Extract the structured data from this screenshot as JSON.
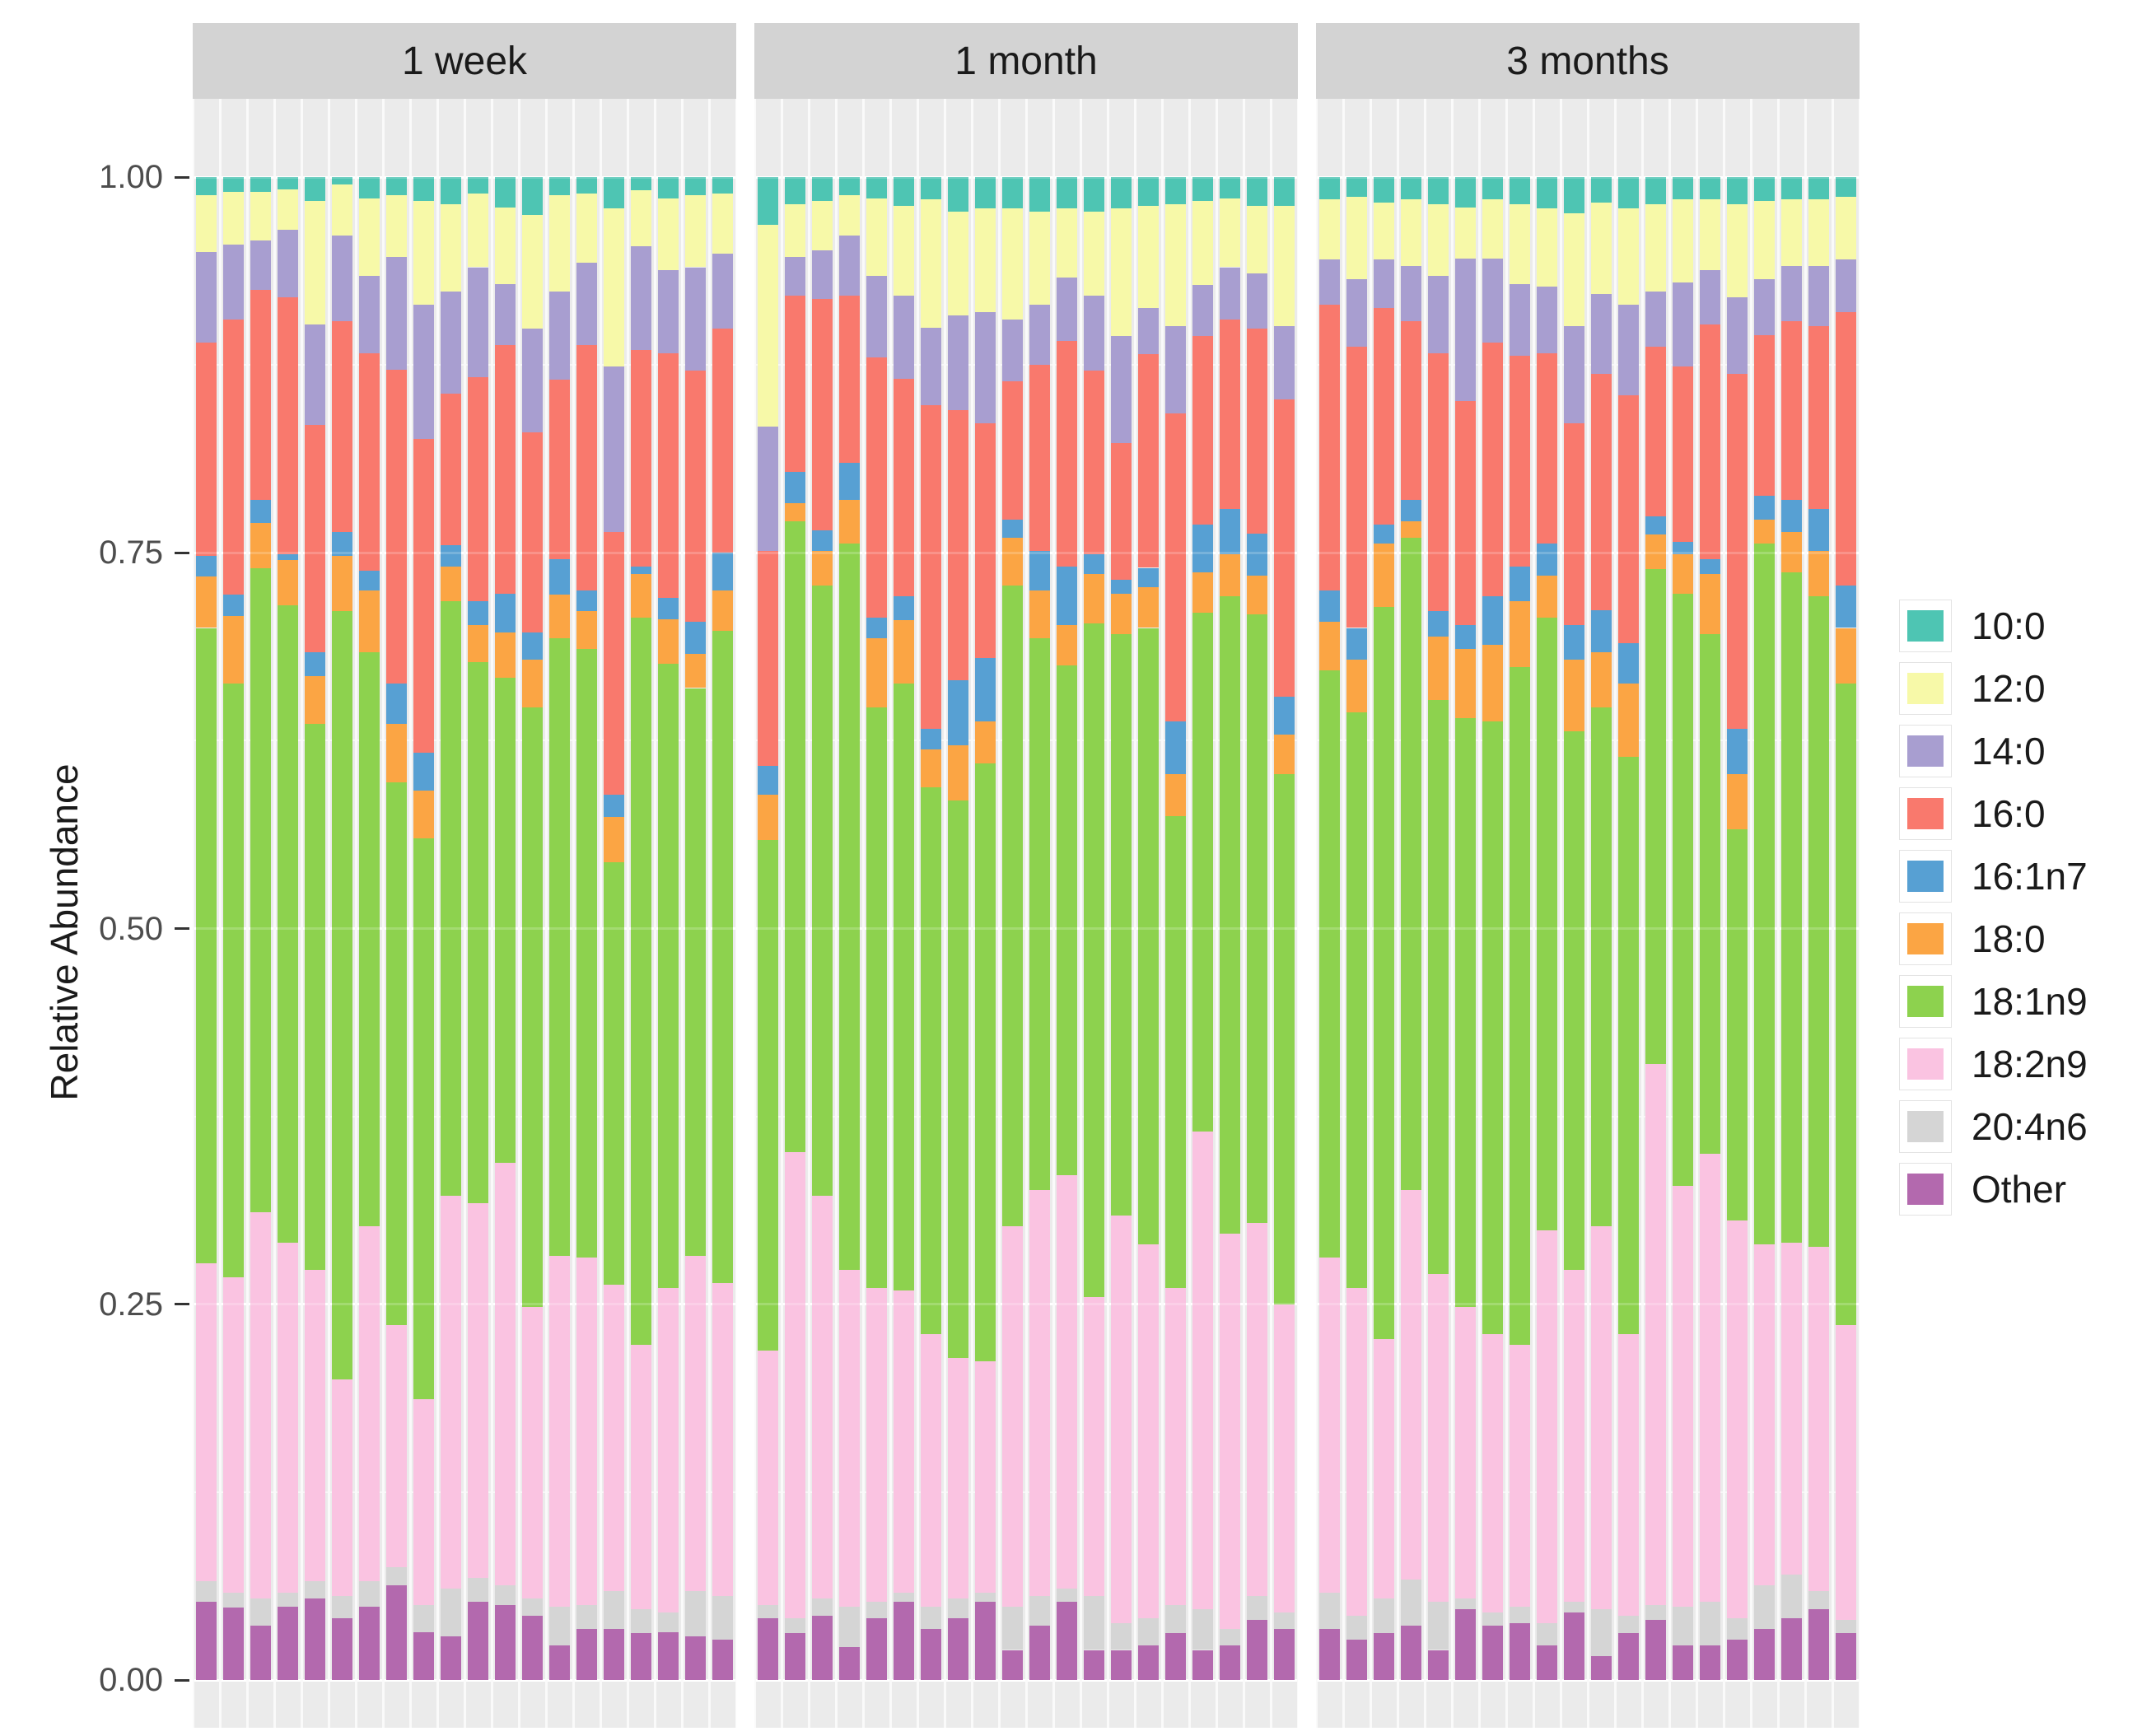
{
  "chart_data": {
    "type": "bar",
    "stacked": true,
    "normalized": true,
    "title": "",
    "ylabel": "Relative Abundance",
    "ylim": [
      0,
      1
    ],
    "grid": true,
    "legend_position": "right",
    "yticks": [
      {
        "label": "1.00",
        "value": 1.0
      },
      {
        "label": "0.75",
        "value": 0.75
      },
      {
        "label": "0.50",
        "value": 0.5
      },
      {
        "label": "0.25",
        "value": 0.25
      },
      {
        "label": "0.00",
        "value": 0.0
      }
    ],
    "series_bottom_to_top": [
      "Other",
      "20:4n6",
      "18:2n9",
      "18:1n9",
      "18:0",
      "16:1n7",
      "16:0",
      "14:0",
      "12:0",
      "10:0"
    ],
    "legend": [
      {
        "label": "10:0",
        "color": "#4EC5B3"
      },
      {
        "label": "12:0",
        "color": "#F7F9A8"
      },
      {
        "label": "14:0",
        "color": "#A89ED0"
      },
      {
        "label": "16:0",
        "color": "#F9796D"
      },
      {
        "label": "16:1n7",
        "color": "#57A0D3"
      },
      {
        "label": "18:0",
        "color": "#FBA544"
      },
      {
        "label": "18:1n9",
        "color": "#8DD24E"
      },
      {
        "label": "18:2n9",
        "color": "#FAC3E1"
      },
      {
        "label": "20:4n6",
        "color": "#D5D5D5"
      },
      {
        "label": "Other",
        "color": "#B369AE"
      }
    ],
    "panel_background": "#EBEBEB",
    "strip_background": "#D3D3D3",
    "facets": [
      {
        "label": "1 week",
        "bars": [
          [
            0.052,
            0.014,
            0.211,
            0.423,
            0.034,
            0.014,
            0.142,
            0.06,
            0.038,
            0.012
          ],
          [
            0.048,
            0.01,
            0.21,
            0.395,
            0.045,
            0.014,
            0.183,
            0.05,
            0.035,
            0.01
          ],
          [
            0.036,
            0.018,
            0.257,
            0.429,
            0.03,
            0.015,
            0.14,
            0.033,
            0.032,
            0.01
          ],
          [
            0.049,
            0.009,
            0.233,
            0.424,
            0.03,
            0.004,
            0.171,
            0.045,
            0.027,
            0.008
          ],
          [
            0.054,
            0.012,
            0.207,
            0.363,
            0.032,
            0.016,
            0.151,
            0.067,
            0.082,
            0.016
          ],
          [
            0.041,
            0.015,
            0.144,
            0.511,
            0.037,
            0.016,
            0.14,
            0.057,
            0.034,
            0.005
          ],
          [
            0.049,
            0.017,
            0.236,
            0.382,
            0.041,
            0.013,
            0.145,
            0.051,
            0.052,
            0.014
          ],
          [
            0.063,
            0.012,
            0.161,
            0.361,
            0.039,
            0.027,
            0.209,
            0.075,
            0.041,
            0.012
          ],
          [
            0.032,
            0.018,
            0.137,
            0.373,
            0.032,
            0.025,
            0.209,
            0.089,
            0.069,
            0.016
          ],
          [
            0.029,
            0.032,
            0.261,
            0.396,
            0.023,
            0.014,
            0.101,
            0.068,
            0.058,
            0.018
          ],
          [
            0.052,
            0.016,
            0.249,
            0.36,
            0.025,
            0.016,
            0.149,
            0.073,
            0.049,
            0.011
          ],
          [
            0.05,
            0.013,
            0.281,
            0.323,
            0.03,
            0.026,
            0.165,
            0.041,
            0.051,
            0.02
          ],
          [
            0.043,
            0.011,
            0.194,
            0.399,
            0.032,
            0.018,
            0.133,
            0.069,
            0.076,
            0.025
          ],
          [
            0.023,
            0.026,
            0.233,
            0.411,
            0.029,
            0.024,
            0.119,
            0.059,
            0.064,
            0.012
          ],
          [
            0.034,
            0.016,
            0.231,
            0.405,
            0.025,
            0.014,
            0.163,
            0.055,
            0.046,
            0.011
          ],
          [
            0.034,
            0.025,
            0.204,
            0.281,
            0.03,
            0.015,
            0.175,
            0.11,
            0.105,
            0.021
          ],
          [
            0.031,
            0.016,
            0.176,
            0.484,
            0.029,
            0.005,
            0.144,
            0.069,
            0.037,
            0.009
          ],
          [
            0.032,
            0.013,
            0.216,
            0.415,
            0.03,
            0.014,
            0.163,
            0.055,
            0.048,
            0.014
          ],
          [
            0.029,
            0.03,
            0.223,
            0.378,
            0.023,
            0.021,
            0.167,
            0.069,
            0.048,
            0.012
          ],
          [
            0.027,
            0.029,
            0.208,
            0.434,
            0.027,
            0.025,
            0.149,
            0.05,
            0.04,
            0.011
          ]
        ]
      },
      {
        "label": "1 month",
        "bars": [
          [
            0.041,
            0.009,
            0.169,
            0.34,
            0.03,
            0.019,
            0.143,
            0.083,
            0.134,
            0.032
          ],
          [
            0.031,
            0.01,
            0.31,
            0.42,
            0.012,
            0.021,
            0.117,
            0.026,
            0.035,
            0.018
          ],
          [
            0.043,
            0.011,
            0.268,
            0.406,
            0.023,
            0.014,
            0.154,
            0.032,
            0.033,
            0.016
          ],
          [
            0.022,
            0.027,
            0.224,
            0.483,
            0.029,
            0.025,
            0.111,
            0.04,
            0.027,
            0.012
          ],
          [
            0.041,
            0.011,
            0.209,
            0.386,
            0.046,
            0.014,
            0.173,
            0.054,
            0.052,
            0.014
          ],
          [
            0.052,
            0.006,
            0.201,
            0.404,
            0.042,
            0.016,
            0.145,
            0.055,
            0.06,
            0.019
          ],
          [
            0.034,
            0.015,
            0.181,
            0.364,
            0.025,
            0.014,
            0.215,
            0.052,
            0.085,
            0.015
          ],
          [
            0.041,
            0.013,
            0.16,
            0.371,
            0.037,
            0.043,
            0.18,
            0.063,
            0.069,
            0.023
          ],
          [
            0.052,
            0.006,
            0.154,
            0.398,
            0.028,
            0.042,
            0.156,
            0.074,
            0.069,
            0.021
          ],
          [
            0.02,
            0.029,
            0.253,
            0.426,
            0.032,
            0.012,
            0.092,
            0.041,
            0.074,
            0.021
          ],
          [
            0.036,
            0.02,
            0.27,
            0.367,
            0.032,
            0.026,
            0.124,
            0.04,
            0.062,
            0.023
          ],
          [
            0.052,
            0.009,
            0.275,
            0.339,
            0.027,
            0.039,
            0.15,
            0.042,
            0.046,
            0.021
          ],
          [
            0.02,
            0.036,
            0.199,
            0.448,
            0.033,
            0.013,
            0.122,
            0.05,
            0.056,
            0.023
          ],
          [
            0.02,
            0.018,
            0.271,
            0.387,
            0.027,
            0.009,
            0.091,
            0.071,
            0.085,
            0.021
          ],
          [
            0.023,
            0.018,
            0.249,
            0.41,
            0.027,
            0.013,
            0.142,
            0.031,
            0.068,
            0.019
          ],
          [
            0.031,
            0.019,
            0.211,
            0.314,
            0.028,
            0.035,
            0.205,
            0.058,
            0.081,
            0.018
          ],
          [
            0.02,
            0.027,
            0.318,
            0.345,
            0.027,
            0.032,
            0.125,
            0.034,
            0.056,
            0.016
          ],
          [
            0.023,
            0.011,
            0.263,
            0.424,
            0.028,
            0.03,
            0.126,
            0.035,
            0.046,
            0.014
          ],
          [
            0.04,
            0.016,
            0.248,
            0.405,
            0.026,
            0.028,
            0.136,
            0.037,
            0.045,
            0.019
          ],
          [
            0.034,
            0.011,
            0.205,
            0.353,
            0.026,
            0.025,
            0.198,
            0.049,
            0.08,
            0.019
          ]
        ]
      },
      {
        "label": "3 months",
        "bars": [
          [
            0.034,
            0.024,
            0.223,
            0.391,
            0.032,
            0.021,
            0.19,
            0.03,
            0.04,
            0.015
          ],
          [
            0.027,
            0.016,
            0.218,
            0.383,
            0.035,
            0.021,
            0.187,
            0.045,
            0.055,
            0.013
          ],
          [
            0.031,
            0.023,
            0.173,
            0.487,
            0.042,
            0.013,
            0.144,
            0.032,
            0.038,
            0.017
          ],
          [
            0.036,
            0.031,
            0.259,
            0.434,
            0.011,
            0.014,
            0.119,
            0.037,
            0.044,
            0.015
          ],
          [
            0.02,
            0.032,
            0.218,
            0.382,
            0.042,
            0.017,
            0.172,
            0.051,
            0.048,
            0.018
          ],
          [
            0.047,
            0.007,
            0.194,
            0.392,
            0.046,
            0.016,
            0.149,
            0.095,
            0.034,
            0.02
          ],
          [
            0.036,
            0.009,
            0.185,
            0.408,
            0.051,
            0.032,
            0.169,
            0.056,
            0.039,
            0.015
          ],
          [
            0.038,
            0.011,
            0.174,
            0.451,
            0.044,
            0.023,
            0.14,
            0.048,
            0.053,
            0.018
          ],
          [
            0.023,
            0.015,
            0.261,
            0.408,
            0.028,
            0.021,
            0.127,
            0.044,
            0.052,
            0.021
          ],
          [
            0.045,
            0.007,
            0.221,
            0.358,
            0.048,
            0.023,
            0.134,
            0.065,
            0.075,
            0.024
          ],
          [
            0.016,
            0.031,
            0.255,
            0.345,
            0.037,
            0.028,
            0.157,
            0.053,
            0.061,
            0.017
          ],
          [
            0.031,
            0.012,
            0.187,
            0.384,
            0.049,
            0.027,
            0.165,
            0.06,
            0.064,
            0.021
          ],
          [
            0.04,
            0.01,
            0.36,
            0.329,
            0.023,
            0.012,
            0.113,
            0.037,
            0.058,
            0.018
          ],
          [
            0.023,
            0.026,
            0.28,
            0.394,
            0.026,
            0.008,
            0.117,
            0.056,
            0.055,
            0.015
          ],
          [
            0.023,
            0.029,
            0.298,
            0.346,
            0.04,
            0.01,
            0.156,
            0.036,
            0.047,
            0.015
          ],
          [
            0.027,
            0.014,
            0.265,
            0.26,
            0.037,
            0.03,
            0.236,
            0.051,
            0.062,
            0.018
          ],
          [
            0.034,
            0.029,
            0.227,
            0.466,
            0.016,
            0.016,
            0.107,
            0.037,
            0.052,
            0.016
          ],
          [
            0.041,
            0.029,
            0.221,
            0.446,
            0.027,
            0.021,
            0.119,
            0.037,
            0.044,
            0.015
          ],
          [
            0.047,
            0.012,
            0.229,
            0.433,
            0.03,
            0.028,
            0.122,
            0.04,
            0.044,
            0.015
          ],
          [
            0.031,
            0.009,
            0.196,
            0.427,
            0.037,
            0.028,
            0.182,
            0.035,
            0.042,
            0.013
          ]
        ]
      }
    ]
  }
}
